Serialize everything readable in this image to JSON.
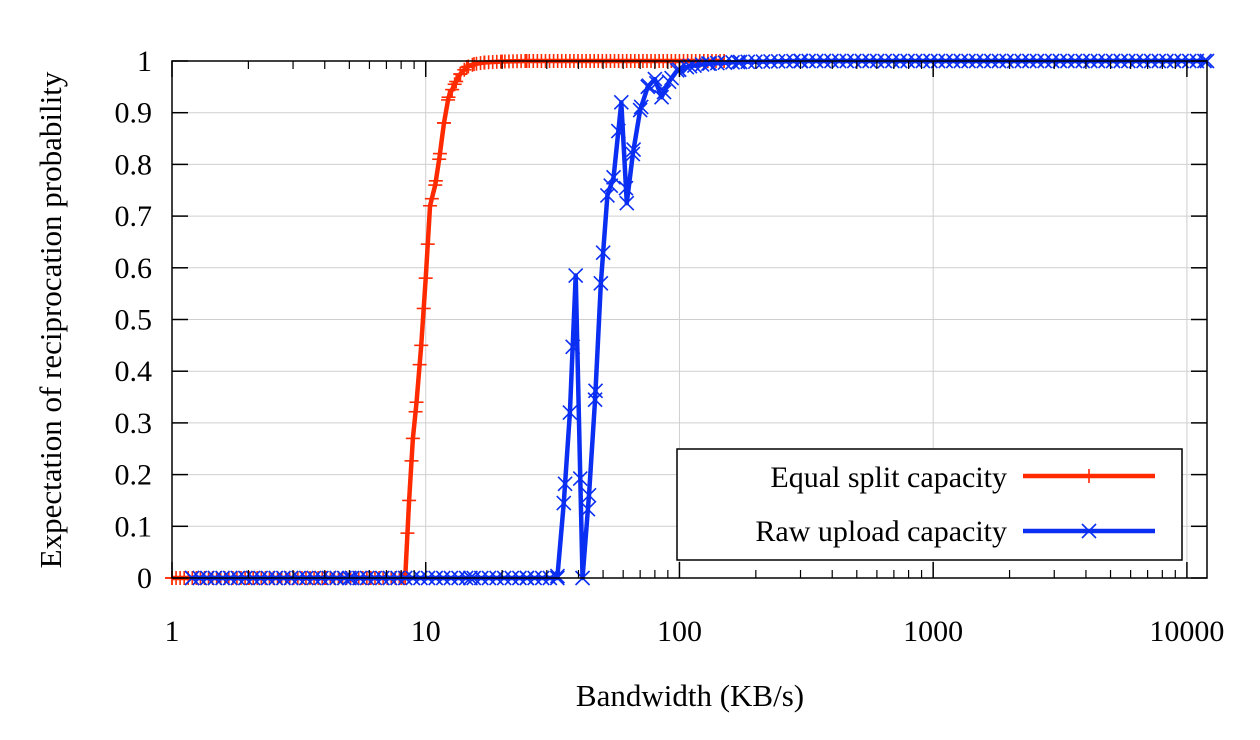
{
  "chart_data": {
    "type": "line",
    "xlabel": "Bandwidth (KB/s)",
    "ylabel": "Expectation of reciprocation probability",
    "x_scale": "log",
    "xlim": [
      1,
      12000
    ],
    "ylim": [
      0,
      1
    ],
    "grid": true,
    "legend_position": "bottom-right",
    "x_ticks": [
      1,
      10,
      100,
      1000,
      10000
    ],
    "x_tick_labels": [
      "1",
      "10",
      "100",
      "1000",
      "10000"
    ],
    "y_ticks": [
      0,
      0.1,
      0.2,
      0.3,
      0.4,
      0.5,
      0.6,
      0.7,
      0.8,
      0.9,
      1
    ],
    "y_tick_labels": [
      "0",
      "0.1",
      "0.2",
      "0.3",
      "0.4",
      "0.5",
      "0.6",
      "0.7",
      "0.8",
      "0.9",
      "1"
    ],
    "series": [
      {
        "name": "Equal split capacity",
        "color": "#ff2a00",
        "marker": "plus",
        "marker_step": 0.016,
        "x_max": 150,
        "points": [
          [
            1,
            0
          ],
          [
            2,
            0
          ],
          [
            4,
            0
          ],
          [
            6,
            0
          ],
          [
            8,
            0
          ],
          [
            8.3,
            0
          ],
          [
            8.6,
            0.15
          ],
          [
            8.9,
            0.27
          ],
          [
            9.2,
            0.34
          ],
          [
            9.6,
            0.45
          ],
          [
            10,
            0.58
          ],
          [
            10.4,
            0.72
          ],
          [
            10.9,
            0.76
          ],
          [
            11.3,
            0.81
          ],
          [
            11.8,
            0.88
          ],
          [
            12.3,
            0.93
          ],
          [
            13,
            0.955
          ],
          [
            13.7,
            0.975
          ],
          [
            14.5,
            0.988
          ],
          [
            15.5,
            0.994
          ],
          [
            17,
            0.997
          ],
          [
            20,
            0.999
          ],
          [
            25,
            1
          ],
          [
            150,
            1
          ]
        ]
      },
      {
        "name": "Raw upload capacity",
        "color": "#0a2ef2",
        "marker": "cross",
        "marker_step": 0.03,
        "x_max": 12000,
        "points": [
          [
            1.2,
            0
          ],
          [
            5,
            0
          ],
          [
            15,
            0
          ],
          [
            25,
            0
          ],
          [
            33,
            0
          ],
          [
            35,
            0.145
          ],
          [
            37,
            0.32
          ],
          [
            39,
            0.585
          ],
          [
            41.5,
            0
          ],
          [
            44,
            0.16
          ],
          [
            46.5,
            0.345
          ],
          [
            49,
            0.57
          ],
          [
            52,
            0.74
          ],
          [
            55,
            0.775
          ],
          [
            59,
            0.92
          ],
          [
            62,
            0.725
          ],
          [
            65.5,
            0.82
          ],
          [
            70,
            0.905
          ],
          [
            75,
            0.95
          ],
          [
            80,
            0.965
          ],
          [
            85,
            0.93
          ],
          [
            91,
            0.96
          ],
          [
            98,
            0.982
          ],
          [
            110,
            0.99
          ],
          [
            130,
            0.995
          ],
          [
            170,
            0.998
          ],
          [
            300,
            1
          ],
          [
            12000,
            1
          ]
        ]
      }
    ]
  }
}
